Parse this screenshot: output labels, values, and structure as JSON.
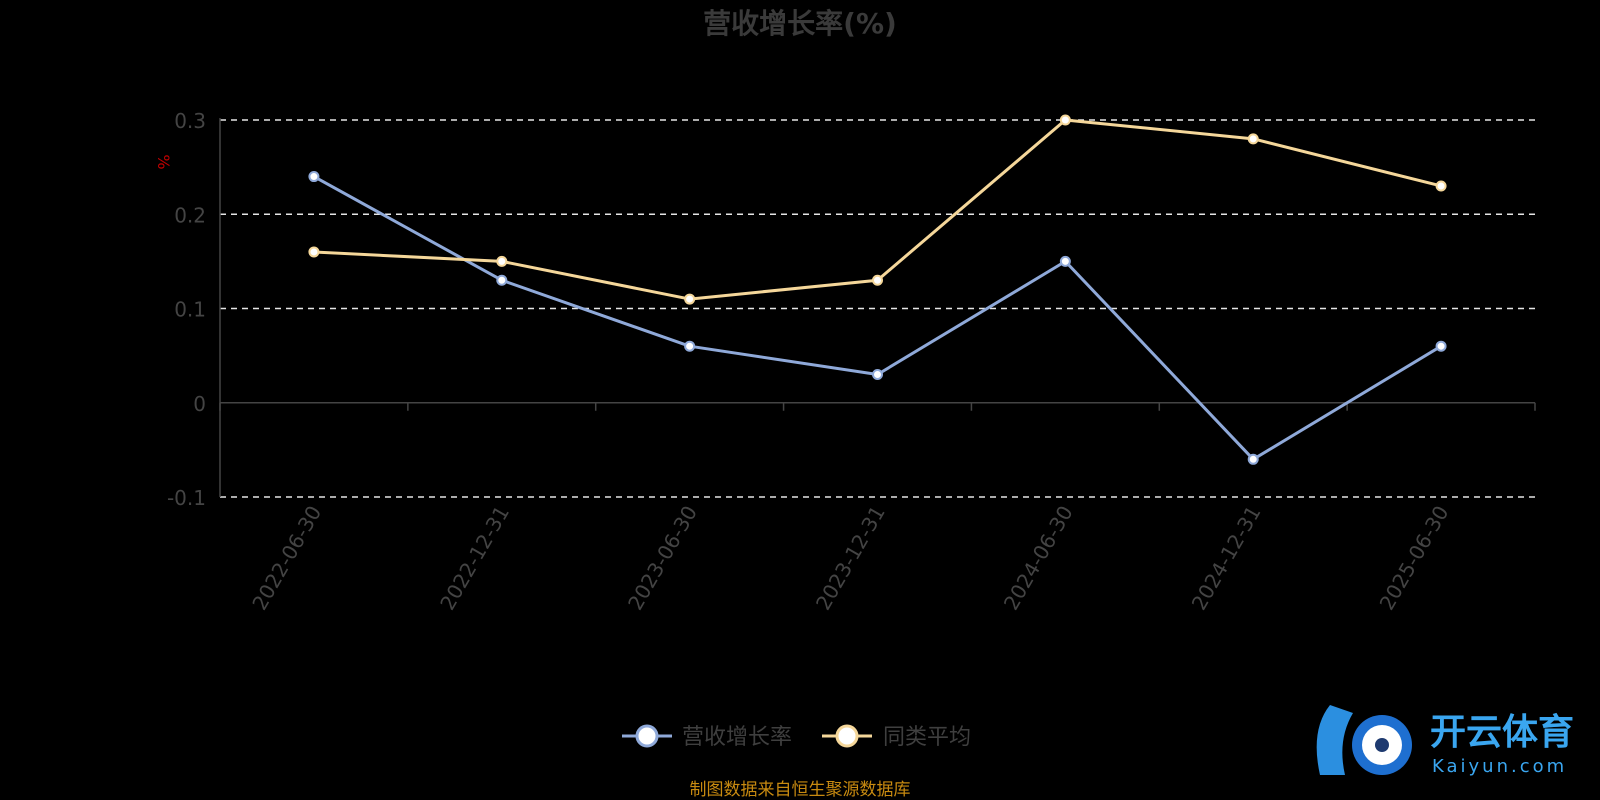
{
  "chart_data": {
    "type": "line",
    "title": "营收增长率(%)",
    "ylabel": "%",
    "ylim": [
      -0.1,
      0.3
    ],
    "yticks": [
      "-0.1",
      "0",
      "0.1",
      "0.2",
      "0.3"
    ],
    "categories": [
      "2022-06-30",
      "2022-12-31",
      "2023-06-30",
      "2023-12-31",
      "2024-06-30",
      "2024-12-31",
      "2025-06-30"
    ],
    "series": [
      {
        "name": "营收增长率",
        "color": "#8fa9d9",
        "values": [
          0.24,
          0.13,
          0.06,
          0.03,
          0.15,
          -0.06,
          0.06
        ]
      },
      {
        "name": "同类平均",
        "color": "#f5d79a",
        "values": [
          0.16,
          0.15,
          0.11,
          0.13,
          0.3,
          0.28,
          0.23
        ]
      }
    ],
    "grid": "dashed horizontal",
    "legend": "bottom-center"
  },
  "source_note": "制图数据来自恒生聚源数据库",
  "watermark": {
    "brand": "开云体育",
    "domain": "Kaiyun.com"
  }
}
